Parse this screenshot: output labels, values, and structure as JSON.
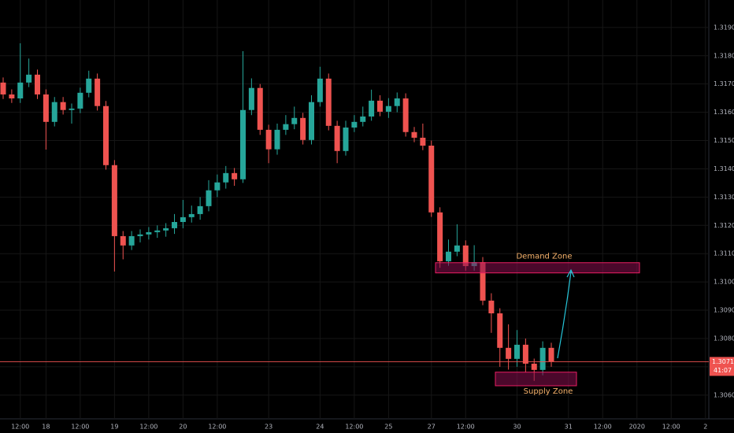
{
  "chart_data": {
    "type": "candlestick",
    "categories": [
      null,
      null,
      "12:00",
      null,
      null,
      "18",
      null,
      null,
      null,
      "12:00",
      null,
      null,
      null,
      "19",
      null,
      null,
      null,
      "12:00",
      null,
      null,
      null,
      "20",
      null,
      null,
      null,
      "12:00",
      null,
      null,
      null,
      null,
      null,
      "23",
      null,
      null,
      null,
      null,
      null,
      "24",
      null,
      null,
      null,
      "12:00",
      null,
      null,
      null,
      "25",
      null,
      null,
      null,
      null,
      "27",
      null,
      null,
      null,
      "12:00",
      null,
      null,
      null,
      null,
      null,
      "30",
      null,
      null,
      null,
      null,
      null,
      "31",
      null,
      null,
      null,
      "12:00",
      null,
      null,
      null,
      "2020",
      null,
      null,
      null,
      "12:00",
      null,
      null,
      null,
      "2"
    ],
    "open": [
      1.31705,
      1.31663,
      1.31649,
      1.31705,
      1.31733,
      1.31663,
      1.31566,
      1.31636,
      1.31608,
      1.31613,
      1.31669,
      1.31719,
      1.31622,
      1.31413,
      1.31162,
      1.31129,
      1.31162,
      1.31168,
      1.31176,
      1.31182,
      1.3119,
      1.31212,
      1.31229,
      1.3124,
      1.31268,
      1.31324,
      1.31352,
      1.31385,
      1.31363,
      1.31608,
      1.31686,
      1.31538,
      1.31469,
      1.31538,
      1.31558,
      1.3158,
      1.31502,
      1.31636,
      1.31719,
      1.31552,
      1.31463,
      1.31546,
      1.31566,
      1.31585,
      1.31641,
      1.31602,
      1.31622,
      1.31649,
      1.3153,
      1.3151,
      1.31482,
      1.31246,
      1.31073,
      1.31107,
      1.31129,
      1.31056,
      1.3107,
      1.30934,
      1.30889,
      1.30767,
      1.30728,
      1.30778,
      1.30711,
      1.30689,
      1.30767,
      null,
      null,
      null,
      null,
      null,
      null,
      null,
      null,
      null,
      null,
      null,
      null,
      null,
      null,
      null,
      null,
      null,
      null
    ],
    "high": [
      1.31723,
      1.31681,
      1.31844,
      1.3179,
      1.31751,
      1.31681,
      1.31654,
      1.31654,
      1.31631,
      1.31687,
      1.31747,
      1.31737,
      1.3164,
      1.31431,
      1.3118,
      1.3118,
      1.31186,
      1.31194,
      1.312,
      1.31208,
      1.3124,
      1.3129,
      1.3127,
      1.313,
      1.3136,
      1.3138,
      1.3141,
      1.31403,
      1.31816,
      1.3172,
      1.317,
      1.31556,
      1.3156,
      1.3159,
      1.3162,
      1.31598,
      1.3166,
      1.31761,
      1.31737,
      1.3157,
      1.3157,
      1.3159,
      1.3162,
      1.3168,
      1.3166,
      1.3165,
      1.3167,
      1.31667,
      1.31548,
      1.3156,
      1.315,
      1.31264,
      1.3115,
      1.31204,
      1.31147,
      1.3113,
      1.31088,
      1.3096,
      1.30907,
      1.3085,
      1.3083,
      1.308,
      1.30729,
      1.3079,
      1.30785,
      null,
      null,
      null,
      null,
      null,
      null,
      null,
      null,
      null,
      null,
      null,
      null,
      null,
      null,
      null,
      null,
      null,
      null
    ],
    "low": [
      1.31647,
      1.31633,
      1.31633,
      1.31689,
      1.31647,
      1.31468,
      1.3155,
      1.31592,
      1.3156,
      1.31597,
      1.31653,
      1.31606,
      1.31397,
      1.31037,
      1.3108,
      1.31113,
      1.3114,
      1.3115,
      1.31156,
      1.3116,
      1.3117,
      1.3119,
      1.3121,
      1.3122,
      1.3125,
      1.313,
      1.3133,
      1.3134,
      1.3135,
      1.3159,
      1.3152,
      1.3142,
      1.3145,
      1.3152,
      1.3154,
      1.31486,
      1.31486,
      1.3162,
      1.31536,
      1.3142,
      1.31447,
      1.3153,
      1.3155,
      1.3157,
      1.31586,
      1.3158,
      1.316,
      1.31514,
      1.31494,
      1.31466,
      1.3123,
      1.3105,
      1.31057,
      1.31091,
      1.3104,
      1.3104,
      1.30918,
      1.3082,
      1.307,
      1.3069,
      1.307,
      1.3068,
      1.3065,
      1.3067,
      1.307,
      null,
      null,
      null,
      null,
      null,
      null,
      null,
      null,
      null,
      null,
      null,
      null,
      null,
      null,
      null,
      null,
      null,
      null
    ],
    "close": [
      1.31663,
      1.31649,
      1.31705,
      1.31733,
      1.31663,
      1.31566,
      1.31636,
      1.31608,
      1.31613,
      1.31669,
      1.31719,
      1.31622,
      1.31413,
      1.31162,
      1.31129,
      1.31162,
      1.31168,
      1.31176,
      1.31182,
      1.3119,
      1.31212,
      1.31229,
      1.3124,
      1.31268,
      1.31324,
      1.31352,
      1.31385,
      1.31363,
      1.31608,
      1.31686,
      1.31538,
      1.31469,
      1.31538,
      1.31558,
      1.3158,
      1.31502,
      1.31636,
      1.31719,
      1.31552,
      1.31463,
      1.31546,
      1.31566,
      1.31585,
      1.31641,
      1.31602,
      1.31622,
      1.31649,
      1.3153,
      1.3151,
      1.31482,
      1.31246,
      1.31073,
      1.31107,
      1.31129,
      1.31056,
      1.3107,
      1.30934,
      1.30889,
      1.30767,
      1.30728,
      1.30778,
      1.30711,
      1.30689,
      1.30767,
      1.30718,
      null,
      null,
      null,
      null,
      null,
      null,
      null,
      null,
      null,
      null,
      null,
      null,
      null,
      null,
      null,
      null,
      null,
      null
    ],
    "up_color": "#26a69a",
    "down_color": "#ef5350",
    "ylim": [
      1.30516,
      1.31997
    ],
    "yticks": [
      {
        "value": 1.306,
        "label": "1.30600"
      },
      {
        "value": 1.307,
        "label": "1.30700"
      },
      {
        "value": 1.308,
        "label": "1.30800"
      },
      {
        "value": 1.309,
        "label": "1.30900"
      },
      {
        "value": 1.31,
        "label": "1.31000"
      },
      {
        "value": 1.311,
        "label": "1.31100"
      },
      {
        "value": 1.312,
        "label": "1.31200"
      },
      {
        "value": 1.313,
        "label": "1.31300"
      },
      {
        "value": 1.314,
        "label": "1.31400"
      },
      {
        "value": 1.315,
        "label": "1.31500"
      },
      {
        "value": 1.316,
        "label": "1.31600"
      },
      {
        "value": 1.317,
        "label": "1.31700"
      },
      {
        "value": 1.318,
        "label": "1.31800"
      },
      {
        "value": 1.319,
        "label": "1.31900"
      }
    ],
    "grid": true,
    "last_price": {
      "value": 1.30718,
      "label": "1.30718"
    },
    "countdown": "41:07",
    "zones": [
      {
        "label": "Demand Zone",
        "range": [
          1.31032,
          1.31068
        ]
      },
      {
        "label": "Supply Zone",
        "range": [
          1.30633,
          1.30681
        ]
      }
    ]
  }
}
